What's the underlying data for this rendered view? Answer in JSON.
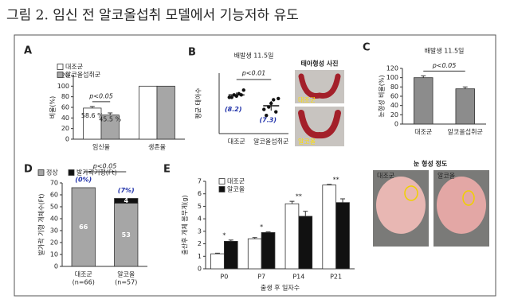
{
  "figure_title": "그림 2. 임신 전 알코올섭취 모델에서 기능저하 유도",
  "chart_data": [
    {
      "panel": "A",
      "type": "bar",
      "ylabel": "비율(%)",
      "categories": [
        "임신율",
        "생존율"
      ],
      "series": [
        {
          "name": "대조군",
          "color": "#ffffff",
          "values": [
            58.6,
            100
          ],
          "errors": [
            3,
            null
          ],
          "value_labels": [
            "58.6 %",
            null
          ]
        },
        {
          "name": "알코올섭취군",
          "color": "#a6a6a6",
          "values": [
            45.5,
            100
          ],
          "errors": [
            4,
            null
          ],
          "value_labels": [
            "45.5 %",
            null
          ]
        }
      ],
      "ylim": [
        0,
        120
      ],
      "yticks": [
        0,
        20,
        40,
        60,
        80,
        100,
        120
      ],
      "annotation": "p<0.05"
    },
    {
      "panel": "B",
      "type": "dot",
      "subtitle": "배발생 11.5일",
      "ylabel": "평균 태아수",
      "categories": [
        "대조군",
        "알코올섭취군"
      ],
      "means": [
        8.2,
        7.3
      ],
      "mean_labels": [
        "(8.2)",
        "(7.3)"
      ],
      "errors": [
        0.2,
        0.4
      ],
      "points": [
        [
          8,
          8,
          8.2,
          8.1,
          8.3,
          8.2,
          8.6
        ],
        [
          7,
          6.5,
          7.2,
          7.5,
          7.8,
          6.8,
          7.9
        ]
      ],
      "ylim": [
        5,
        10
      ],
      "annotation": "p<0.01",
      "photo_title": "태아형성 사진",
      "photo_labels": [
        "대조군",
        "알코올"
      ]
    },
    {
      "panel": "C",
      "type": "bar",
      "subtitle": "배발생 11.5일",
      "ylabel": "눈형성 비율(%)",
      "categories": [
        "대조군",
        "알코올섭취군"
      ],
      "series": [
        {
          "color": "#8c8c8c",
          "values": [
            100,
            76
          ],
          "errors": [
            4,
            4
          ]
        }
      ],
      "ylim": [
        0,
        120
      ],
      "yticks": [
        0,
        20,
        40,
        60,
        80,
        100,
        120
      ],
      "annotation": "p<0.05",
      "photo_title": "눈 형성 정도",
      "photo_labels": [
        "대조군",
        "알코올"
      ]
    },
    {
      "panel": "D",
      "type": "bar",
      "stacked": true,
      "show_values": true,
      "ylabel": "발가락 기형 개체수(Ft)",
      "categories": [
        "대조군",
        "알코올"
      ],
      "n_labels": [
        "(n=66)",
        "(n=57)"
      ],
      "percent_labels": [
        "(0%)",
        "(7%)"
      ],
      "series": [
        {
          "name": "정상",
          "color": "#a6a6a6",
          "values": [
            66,
            53
          ]
        },
        {
          "name": "발가락기형(Ft)",
          "color": "#111111",
          "values": [
            0,
            4
          ]
        }
      ],
      "ylim": [
        0,
        70
      ],
      "yticks": [
        0,
        10,
        20,
        30,
        40,
        50,
        60,
        70
      ],
      "annotation": "p<0.05"
    },
    {
      "panel": "E",
      "type": "bar",
      "ylabel": "출산후 개체 몸무게(g)",
      "xlabel": "출생 후 일자수",
      "categories": [
        "P0",
        "P7",
        "P14",
        "P21"
      ],
      "series": [
        {
          "name": "대조군",
          "color": "#ffffff",
          "values": [
            1.2,
            2.4,
            5.2,
            6.7
          ],
          "errors": [
            0.05,
            0.1,
            0.2,
            0.05
          ]
        },
        {
          "name": "알코올",
          "color": "#111111",
          "values": [
            2.2,
            2.9,
            4.2,
            5.3
          ],
          "errors": [
            0.1,
            0.05,
            0.4,
            0.3
          ]
        }
      ],
      "significance": [
        "*",
        "*",
        "**",
        "**"
      ],
      "ylim": [
        0,
        7
      ],
      "yticks": [
        0,
        1,
        2,
        3,
        4,
        5,
        6,
        7
      ]
    }
  ]
}
